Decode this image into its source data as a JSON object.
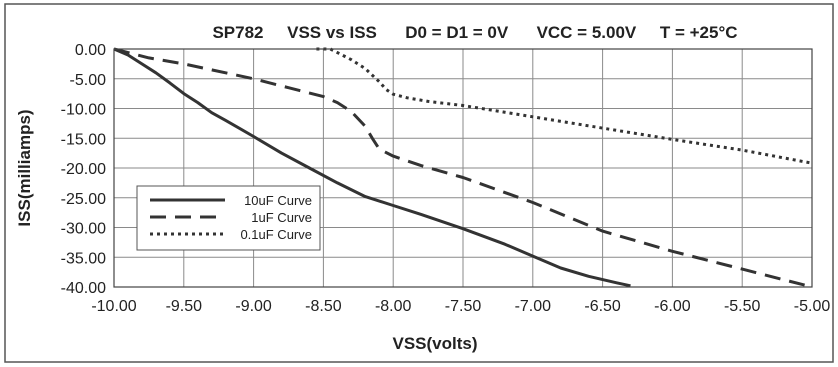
{
  "chart_data": {
    "type": "line",
    "title": "SP782     VSS vs ISS      D0 = D1 = 0V      VCC = 5.00V     T = +25°C",
    "xlabel": "VSS(volts)",
    "ylabel": "ISS(milliamps)",
    "xlim": [
      -10.0,
      -5.0
    ],
    "ylim": [
      -40.0,
      0.0
    ],
    "grid": true,
    "legend_position": "bottom-left",
    "x_tick_labels": [
      "-10.00",
      "-9.50",
      "-9.00",
      "-8.50",
      "-8.00",
      "-7.50",
      "-7.00",
      "-6.50",
      "-6.00",
      "-5.50",
      "-5.00"
    ],
    "y_tick_labels": [
      "0.00",
      "-5.00",
      "-10.00",
      "-15.00",
      "-20.00",
      "-25.00",
      "-30.00",
      "-35.00",
      "-40.00"
    ],
    "x_ticks": [
      -10.0,
      -9.5,
      -9.0,
      -8.5,
      -8.0,
      -7.5,
      -7.0,
      -6.5,
      -6.0,
      -5.5,
      -5.0
    ],
    "y_ticks": [
      0.0,
      -5.0,
      -10.0,
      -15.0,
      -20.0,
      -25.0,
      -30.0,
      -35.0,
      -40.0
    ],
    "series": [
      {
        "name": "10uF Curve",
        "style": "solid",
        "color": "#333333",
        "x": [
          -10.0,
          -9.9,
          -9.8,
          -9.7,
          -9.6,
          -9.5,
          -9.4,
          -9.3,
          -9.2,
          -9.0,
          -8.8,
          -8.6,
          -8.4,
          -8.2,
          -8.0,
          -7.8,
          -7.5,
          -7.2,
          -7.0,
          -6.8,
          -6.6,
          -6.4,
          -6.3
        ],
        "y": [
          0.0,
          -1.0,
          -2.5,
          -4.0,
          -5.7,
          -7.5,
          -9.0,
          -10.7,
          -12.0,
          -14.7,
          -17.5,
          -20.0,
          -22.5,
          -24.8,
          -26.3,
          -27.8,
          -30.2,
          -32.8,
          -34.8,
          -36.8,
          -38.2,
          -39.3,
          -39.8
        ]
      },
      {
        "name": "1uF Curve",
        "style": "dashed",
        "color": "#333333",
        "x": [
          -10.0,
          -9.75,
          -9.5,
          -9.0,
          -8.75,
          -8.5,
          -8.4,
          -8.3,
          -8.2,
          -8.15,
          -8.1,
          -8.0,
          -7.8,
          -7.5,
          -7.0,
          -6.5,
          -6.0,
          -5.5,
          -5.0
        ],
        "y": [
          0.0,
          -1.5,
          -2.5,
          -5.0,
          -6.5,
          -8.0,
          -9.0,
          -10.5,
          -13.0,
          -15.0,
          -16.8,
          -18.0,
          -19.6,
          -21.6,
          -25.8,
          -30.6,
          -34.0,
          -37.0,
          -40.0
        ]
      },
      {
        "name": "0.1uF Curve",
        "style": "dotted",
        "color": "#333333",
        "x": [
          -8.55,
          -8.45,
          -8.4,
          -8.3,
          -8.2,
          -8.1,
          -8.05,
          -8.0,
          -7.9,
          -7.75,
          -7.5,
          -7.0,
          -6.5,
          -6.0,
          -5.5,
          -5.0
        ],
        "y": [
          0.0,
          0.0,
          -0.6,
          -1.8,
          -3.3,
          -5.5,
          -6.8,
          -7.6,
          -8.2,
          -8.8,
          -9.5,
          -11.4,
          -13.3,
          -15.2,
          -17.0,
          -19.2
        ]
      }
    ]
  }
}
